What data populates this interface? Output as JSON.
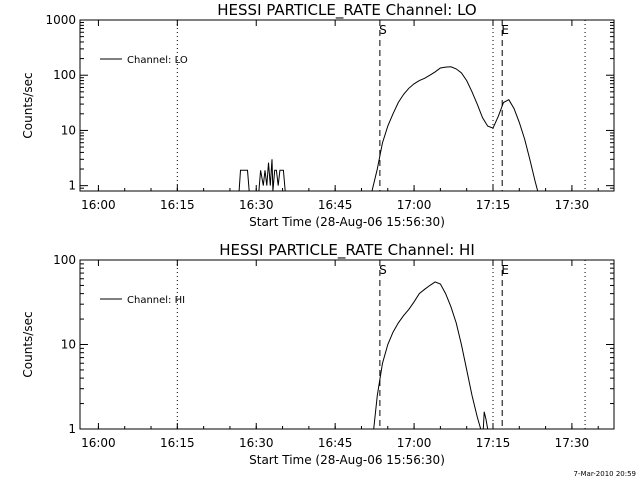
{
  "footer": {
    "timestamp": "7-Mar-2010 20:59"
  },
  "chart_data": [
    {
      "type": "line",
      "title": "HESSI PARTICLE_RATE Channel: LO",
      "xlabel": "Start Time (28-Aug-06 15:56:30)",
      "ylabel": "Counts/sec",
      "y_scale": "log",
      "xlim": [
        "15:56:30",
        "17:38:00"
      ],
      "ylim": [
        0.8,
        1000
      ],
      "x_ticks": [
        "16:00",
        "16:15",
        "16:30",
        "16:45",
        "17:00",
        "17:15",
        "17:30"
      ],
      "y_ticks": [
        "1",
        "10",
        "100",
        "1000"
      ],
      "legend": {
        "position": "top-left",
        "entries": [
          "Channel: LO"
        ]
      },
      "vertical_markers": [
        {
          "time": "16:15:00",
          "style": "dotted",
          "label": ""
        },
        {
          "time": "16:53:30",
          "style": "dashed",
          "label": "S"
        },
        {
          "time": "17:15:00",
          "style": "dotted",
          "label": ""
        },
        {
          "time": "17:16:45",
          "style": "dashed",
          "label": "E"
        },
        {
          "time": "17:32:30",
          "style": "dotted",
          "label": ""
        }
      ],
      "series": [
        {
          "name": "Channel: LO",
          "segments": [
            {
              "x": [
                "16:26:45",
                "16:27:00",
                "16:28:20",
                "16:28:40"
              ],
              "y": [
                0.8,
                1.9,
                1.9,
                0.8
              ]
            },
            {
              "x": [
                "16:30:30",
                "16:30:50",
                "16:31:20",
                "16:31:40",
                "16:32:00",
                "16:32:20",
                "16:32:40",
                "16:33:00",
                "16:33:10",
                "16:33:30",
                "16:33:50",
                "16:34:10",
                "16:34:30",
                "16:35:10",
                "16:35:30"
              ],
              "y": [
                0.8,
                1.9,
                1.0,
                1.9,
                1.0,
                2.6,
                1.0,
                3.0,
                0.8,
                1.9,
                1.9,
                1.0,
                1.9,
                1.9,
                0.8
              ]
            },
            {
              "x": [
                "16:52:00",
                "16:53:00",
                "16:54:00",
                "16:55:00",
                "16:56:00",
                "16:57:00",
                "16:58:00",
                "16:59:00",
                "17:00:00",
                "17:01:00",
                "17:02:00",
                "17:03:00",
                "17:04:00",
                "17:05:00",
                "17:06:00",
                "17:07:00",
                "17:08:00",
                "17:09:00",
                "17:10:00",
                "17:11:00",
                "17:12:00",
                "17:13:00",
                "17:14:00",
                "17:15:00",
                "17:16:00",
                "17:17:00",
                "17:18:00",
                "17:19:00",
                "17:20:00",
                "17:21:00",
                "17:22:00",
                "17:23:00",
                "17:23:30"
              ],
              "y": [
                0.8,
                2.0,
                6,
                12,
                20,
                32,
                45,
                58,
                70,
                80,
                88,
                100,
                115,
                135,
                140,
                142,
                130,
                110,
                80,
                50,
                30,
                17,
                12,
                11,
                18,
                32,
                36,
                25,
                14,
                7,
                3,
                1.2,
                0.8
              ]
            }
          ]
        }
      ]
    },
    {
      "type": "line",
      "title": "HESSI PARTICLE_RATE Channel: HI",
      "xlabel": "Start Time (28-Aug-06 15:56:30)",
      "ylabel": "Counts/sec",
      "y_scale": "log",
      "xlim": [
        "15:56:30",
        "17:38:00"
      ],
      "ylim": [
        1,
        100
      ],
      "x_ticks": [
        "16:00",
        "16:15",
        "16:30",
        "16:45",
        "17:00",
        "17:15",
        "17:30"
      ],
      "y_ticks": [
        "1",
        "10",
        "100"
      ],
      "legend": {
        "position": "top-left",
        "entries": [
          "Channel: HI"
        ]
      },
      "vertical_markers": [
        {
          "time": "16:15:00",
          "style": "dotted",
          "label": ""
        },
        {
          "time": "16:53:30",
          "style": "dashed",
          "label": "S"
        },
        {
          "time": "17:15:00",
          "style": "dotted",
          "label": ""
        },
        {
          "time": "17:16:45",
          "style": "dashed",
          "label": "E"
        },
        {
          "time": "17:32:30",
          "style": "dotted",
          "label": ""
        }
      ],
      "series": [
        {
          "name": "Channel: HI",
          "segments": [
            {
              "x": [
                "16:52:20",
                "16:53:00",
                "16:54:00",
                "16:55:00",
                "16:56:00",
                "16:57:00",
                "16:58:00",
                "16:59:00",
                "17:00:00",
                "17:01:00",
                "17:02:00",
                "17:03:00",
                "17:04:00",
                "17:05:00",
                "17:06:00",
                "17:07:00",
                "17:08:00",
                "17:09:00",
                "17:10:00",
                "17:11:00",
                "17:12:00",
                "17:12:40"
              ],
              "y": [
                1,
                2.5,
                6,
                10,
                14,
                18,
                22,
                26,
                32,
                40,
                45,
                50,
                55,
                52,
                40,
                28,
                18,
                10,
                5,
                2.5,
                1.4,
                1
              ]
            },
            {
              "x": [
                "17:13:10",
                "17:13:20",
                "17:13:40",
                "17:14:00"
              ],
              "y": [
                1,
                1.6,
                1.3,
                1
              ]
            }
          ]
        }
      ]
    }
  ]
}
